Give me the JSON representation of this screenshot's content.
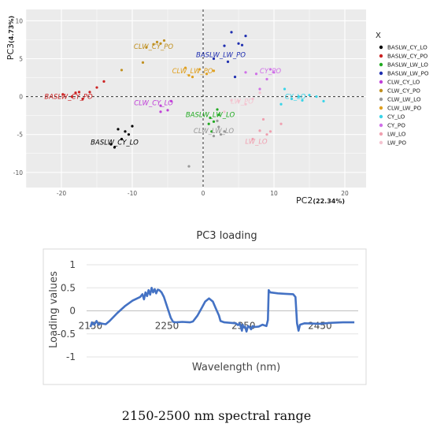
{
  "figure": {
    "middle_title": "PC3 loading",
    "caption": "2150-2500 nm spectral range"
  },
  "chart_data": [
    {
      "type": "scatter",
      "xlabel_main": "PC2",
      "xlabel_pct": "(22.34%)",
      "ylabel_main": "PC3",
      "ylabel_pct": "(4.73%)",
      "xlim": [
        -25,
        23
      ],
      "ylim": [
        -12,
        11.5
      ],
      "xticks": [
        -20,
        -10,
        0,
        10,
        20
      ],
      "yticks": [
        -10,
        -5,
        0,
        5,
        10
      ],
      "grid": true,
      "background": "#ebebeb",
      "reference_lines": {
        "x": 0,
        "y": 0
      },
      "legend": {
        "title": "X",
        "placement": "right",
        "entries": [
          {
            "name": "BASLW_CY_LO",
            "color": "#000000"
          },
          {
            "name": "BASLW_CY_PO",
            "color": "#cc2222"
          },
          {
            "name": "BASLW_LW_LO",
            "color": "#22aa22"
          },
          {
            "name": "BASLW_LW_PO",
            "color": "#1f2fb0"
          },
          {
            "name": "CLW_CY_LO",
            "color": "#c040d8"
          },
          {
            "name": "CLW_CY_PO",
            "color": "#c09020"
          },
          {
            "name": "CLW_LW_LO",
            "color": "#999999"
          },
          {
            "name": "CLW_LW_PO",
            "color": "#e0a020"
          },
          {
            "name": "CY_LO",
            "color": "#3ad4e8"
          },
          {
            "name": "CY_PO",
            "color": "#d070e8"
          },
          {
            "name": "LW_LO",
            "color": "#f0a0b0"
          },
          {
            "name": "LW_PO",
            "color": "#f4c4d0"
          }
        ]
      },
      "group_labels": [
        {
          "text": "BASLW_CY_LO",
          "color": "#000000",
          "x": -12.5,
          "y": -6.0
        },
        {
          "text": "BASLW_CY_PO",
          "color": "#cc2222",
          "x": -19.0,
          "y": 0.0
        },
        {
          "text": "BASLW_LW_LO",
          "color": "#22aa22",
          "x": 1.0,
          "y": -2.4
        },
        {
          "text": "BASLW_LW_PO",
          "color": "#1f2fb0",
          "x": 2.5,
          "y": 5.5
        },
        {
          "text": "CLW_CY_LO",
          "color": "#c040d8",
          "x": -7.0,
          "y": -0.8
        },
        {
          "text": "CLW_CY_PO",
          "color": "#c09020",
          "x": -7.0,
          "y": 6.6
        },
        {
          "text": "CLW_LW_LO",
          "color": "#999999",
          "x": 1.5,
          "y": -4.5
        },
        {
          "text": "CLW_LW_PO",
          "color": "#e0a020",
          "x": -1.5,
          "y": 3.4
        },
        {
          "text": "CY_LO",
          "color": "#3ad4e8",
          "x": 13.0,
          "y": 0.0
        },
        {
          "text": "CY_PO",
          "color": "#d070e8",
          "x": 9.5,
          "y": 3.4
        },
        {
          "text": "LW_LO",
          "color": "#f0a0b0",
          "x": 7.5,
          "y": -5.9
        },
        {
          "text": "LW_PO",
          "color": "#f4c4d0",
          "x": 5.5,
          "y": -0.6
        }
      ],
      "series": [
        {
          "name": "BASLW_CY_LO",
          "color": "#000000",
          "points": [
            [
              -12.0,
              -4.3
            ],
            [
              -11.0,
              -4.6
            ],
            [
              -10.0,
              -3.9
            ],
            [
              -13.0,
              -6.3
            ],
            [
              -12.5,
              -6.7
            ],
            [
              -11.5,
              -5.6
            ],
            [
              -10.5,
              -5.0
            ]
          ]
        },
        {
          "name": "BASLW_CY_PO",
          "color": "#cc2222",
          "points": [
            [
              -19.8,
              0.3
            ],
            [
              -18.5,
              0.0
            ],
            [
              -18.0,
              0.5
            ],
            [
              -17.0,
              -0.3
            ],
            [
              -16.0,
              0.6
            ],
            [
              -15.0,
              1.2
            ],
            [
              -14.0,
              2.0
            ],
            [
              -17.5,
              0.6
            ]
          ]
        },
        {
          "name": "BASLW_LW_LO",
          "color": "#22aa22",
          "points": [
            [
              1.0,
              -2.8
            ],
            [
              1.5,
              -3.3
            ],
            [
              2.0,
              -1.7
            ],
            [
              0.8,
              -3.6
            ],
            [
              1.2,
              -4.6
            ],
            [
              2.2,
              -2.4
            ]
          ]
        },
        {
          "name": "BASLW_LW_PO",
          "color": "#1f2fb0",
          "points": [
            [
              3.0,
              6.7
            ],
            [
              4.0,
              8.5
            ],
            [
              5.0,
              7.0
            ],
            [
              6.0,
              8.0
            ],
            [
              1.5,
              5.0
            ],
            [
              5.5,
              6.8
            ],
            [
              4.5,
              2.6
            ],
            [
              3.5,
              4.6
            ]
          ]
        },
        {
          "name": "CLW_CY_LO",
          "color": "#c040d8",
          "points": [
            [
              -6.0,
              -1.2
            ],
            [
              -5.0,
              -1.8
            ],
            [
              -6.0,
              -2.0
            ],
            [
              -4.5,
              -0.6
            ]
          ]
        },
        {
          "name": "CLW_CY_PO",
          "color": "#c09020",
          "points": [
            [
              -8.0,
              6.5
            ],
            [
              -6.5,
              7.2
            ],
            [
              -5.5,
              7.4
            ],
            [
              -6.0,
              7.0
            ],
            [
              -7.0,
              6.9
            ],
            [
              -8.5,
              4.5
            ],
            [
              -11.5,
              3.5
            ]
          ]
        },
        {
          "name": "CLW_LW_LO",
          "color": "#999999",
          "points": [
            [
              2.0,
              -3.2
            ],
            [
              2.2,
              -4.0
            ],
            [
              2.5,
              -5.0
            ],
            [
              1.5,
              -5.2
            ],
            [
              3.0,
              -4.6
            ],
            [
              -2.0,
              -9.2
            ]
          ]
        },
        {
          "name": "CLW_LW_PO",
          "color": "#e0a020",
          "points": [
            [
              -2.0,
              2.8
            ],
            [
              -1.5,
              2.6
            ],
            [
              -0.5,
              3.6
            ],
            [
              0.5,
              3.0
            ],
            [
              1.5,
              3.4
            ],
            [
              -2.5,
              3.8
            ]
          ]
        },
        {
          "name": "CY_LO",
          "color": "#3ad4e8",
          "points": [
            [
              11.5,
              1.0
            ],
            [
              12.5,
              -0.3
            ],
            [
              13.5,
              0.0
            ],
            [
              14.0,
              -0.5
            ],
            [
              11.0,
              -1.0
            ],
            [
              15.0,
              0.2
            ],
            [
              16.0,
              0.0
            ],
            [
              17.0,
              -0.6
            ]
          ]
        },
        {
          "name": "CY_PO",
          "color": "#d070e8",
          "points": [
            [
              6.0,
              3.2
            ],
            [
              7.5,
              3.0
            ],
            [
              9.5,
              3.6
            ],
            [
              10.0,
              3.2
            ],
            [
              8.0,
              1.0
            ],
            [
              9.0,
              2.3
            ]
          ]
        },
        {
          "name": "LW_LO",
          "color": "#f0a0b0",
          "points": [
            [
              8.0,
              -4.5
            ],
            [
              9.0,
              -5.0
            ],
            [
              7.0,
              -5.6
            ],
            [
              9.5,
              -4.6
            ],
            [
              8.5,
              -3.0
            ],
            [
              11.0,
              -3.6
            ]
          ]
        },
        {
          "name": "LW_PO",
          "color": "#f4c4d0",
          "points": [
            [
              4.0,
              -0.5
            ],
            [
              5.0,
              -0.6
            ],
            [
              6.0,
              -1.0
            ],
            [
              7.0,
              -0.3
            ],
            [
              8.0,
              0.5
            ],
            [
              3.0,
              -2.0
            ]
          ]
        }
      ]
    },
    {
      "type": "line",
      "xlabel": "Wavelength (nm)",
      "ylabel": "Loading values",
      "xlim": [
        2145,
        2500
      ],
      "ylim": [
        -1,
        1
      ],
      "xticks": [
        2150,
        2250,
        2350,
        2450
      ],
      "yticks": [
        -1,
        -0.5,
        0,
        0.5,
        1
      ],
      "ytick_labels": [
        "-1",
        "-0.5",
        "0",
        "0.5",
        "1"
      ],
      "grid": true,
      "line_color": "#4472c4",
      "points": [
        [
          2150,
          -0.35
        ],
        [
          2152,
          -0.25
        ],
        [
          2155,
          -0.3
        ],
        [
          2158,
          -0.22
        ],
        [
          2161,
          -0.3
        ],
        [
          2163,
          -0.27
        ],
        [
          2166,
          -0.28
        ],
        [
          2170,
          -0.29
        ],
        [
          2175,
          -0.22
        ],
        [
          2185,
          -0.05
        ],
        [
          2195,
          0.1
        ],
        [
          2205,
          0.22
        ],
        [
          2215,
          0.3
        ],
        [
          2218,
          0.36
        ],
        [
          2220,
          0.25
        ],
        [
          2222,
          0.4
        ],
        [
          2224,
          0.32
        ],
        [
          2226,
          0.45
        ],
        [
          2228,
          0.35
        ],
        [
          2230,
          0.5
        ],
        [
          2232,
          0.4
        ],
        [
          2234,
          0.47
        ],
        [
          2236,
          0.38
        ],
        [
          2238,
          0.46
        ],
        [
          2240,
          0.45
        ],
        [
          2243,
          0.4
        ],
        [
          2246,
          0.3
        ],
        [
          2249,
          0.15
        ],
        [
          2252,
          0.0
        ],
        [
          2255,
          -0.15
        ],
        [
          2258,
          -0.24
        ],
        [
          2262,
          -0.25
        ],
        [
          2270,
          -0.24
        ],
        [
          2280,
          -0.25
        ],
        [
          2284,
          -0.23
        ],
        [
          2290,
          -0.1
        ],
        [
          2295,
          0.05
        ],
        [
          2300,
          0.2
        ],
        [
          2305,
          0.27
        ],
        [
          2310,
          0.2
        ],
        [
          2314,
          0.05
        ],
        [
          2318,
          -0.1
        ],
        [
          2320,
          -0.22
        ],
        [
          2325,
          -0.25
        ],
        [
          2340,
          -0.27
        ],
        [
          2343,
          -0.31
        ],
        [
          2345,
          -0.27
        ],
        [
          2347,
          -0.37
        ],
        [
          2348,
          -0.43
        ],
        [
          2349,
          -0.3
        ],
        [
          2350,
          -0.36
        ],
        [
          2352,
          -0.34
        ],
        [
          2354,
          -0.45
        ],
        [
          2356,
          -0.33
        ],
        [
          2358,
          -0.35
        ],
        [
          2360,
          -0.4
        ],
        [
          2362,
          -0.33
        ],
        [
          2365,
          -0.35
        ],
        [
          2370,
          -0.34
        ],
        [
          2375,
          -0.3
        ],
        [
          2380,
          -0.33
        ],
        [
          2382,
          -0.2
        ],
        [
          2383,
          0.45
        ],
        [
          2385,
          0.4
        ],
        [
          2395,
          0.38
        ],
        [
          2405,
          0.37
        ],
        [
          2415,
          0.36
        ],
        [
          2418,
          0.3
        ],
        [
          2420,
          -0.27
        ],
        [
          2422,
          -0.43
        ],
        [
          2424,
          -0.3
        ],
        [
          2430,
          -0.27
        ],
        [
          2450,
          -0.28
        ],
        [
          2465,
          -0.26
        ],
        [
          2480,
          -0.25
        ],
        [
          2495,
          -0.25
        ]
      ]
    }
  ]
}
